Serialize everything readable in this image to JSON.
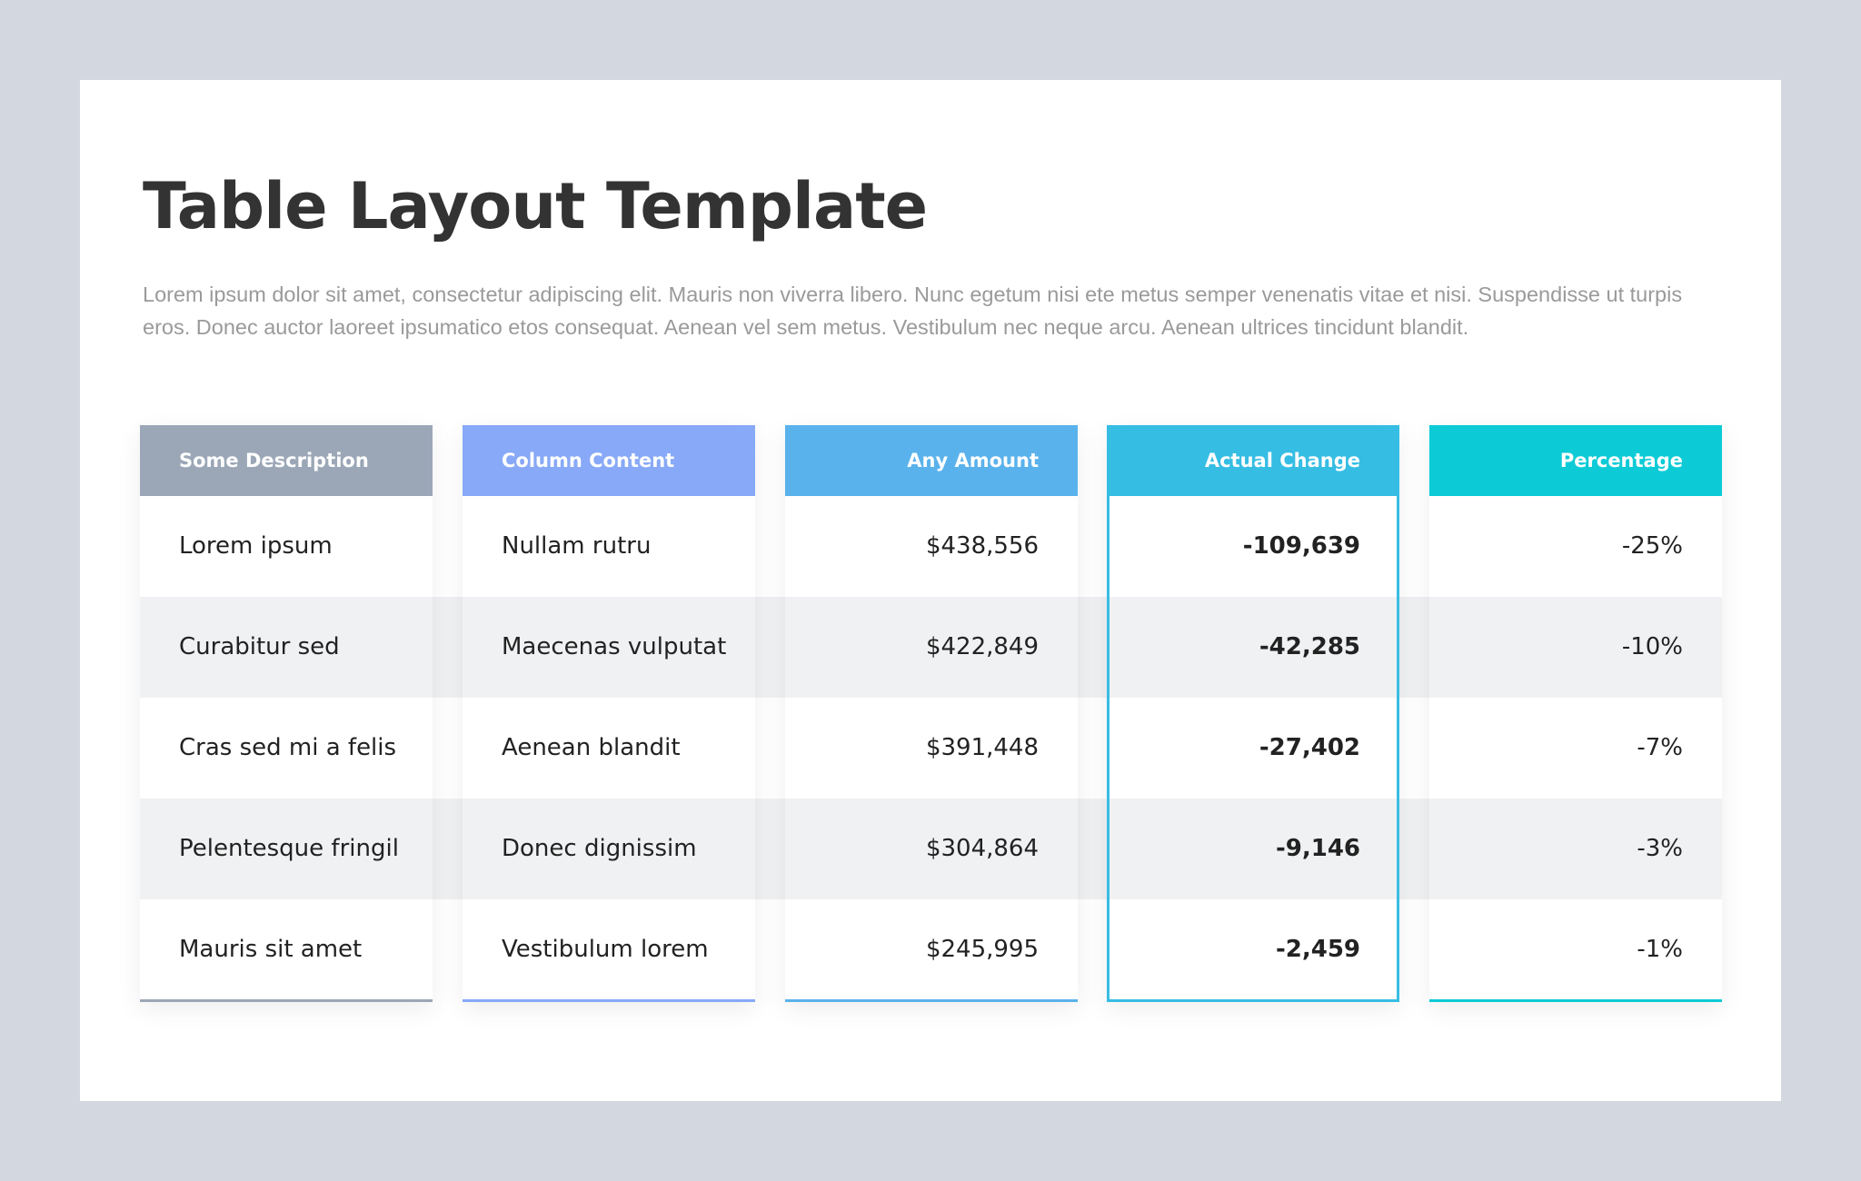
{
  "title": "Table Layout Template",
  "description": "Lorem ipsum dolor sit amet, consectetur adipiscing elit. Mauris non viverra libero. Nunc egetum nisi ete metus semper venenatis vitae et nisi. Suspendisse ut turpis eros. Donec auctor laoreet ipsumatico etos consequat. Aenean vel sem metus. Vestibulum nec neque arcu. Aenean ultrices tincidunt blandit.",
  "colors": {
    "description": "#9ba7b7",
    "content": "#88a9f7",
    "amount": "#5ab2ec",
    "change": "#36bde3",
    "percentage": "#0ccbd6"
  },
  "columns": {
    "description": {
      "header": "Some Description",
      "cells": [
        "Lorem ipsum",
        "Curabitur sed",
        "Cras sed mi a felis",
        "Pelentesque fringil",
        "Mauris sit amet"
      ]
    },
    "content": {
      "header": "Column Content",
      "cells": [
        "Nullam rutru",
        "Maecenas vulputat",
        "Aenean blandit",
        "Donec dignissim",
        "Vestibulum lorem"
      ]
    },
    "amount": {
      "header": "Any Amount",
      "cells": [
        "$438,556",
        "$422,849",
        "$391,448",
        "$304,864",
        "$245,995"
      ]
    },
    "change": {
      "header": "Actual Change",
      "cells": [
        "-109,639",
        "-42,285",
        "-27,402",
        "-9,146",
        "-2,459"
      ]
    },
    "percentage": {
      "header": "Percentage",
      "cells": [
        "-25%",
        "-10%",
        "-7%",
        "-3%",
        "-1%"
      ]
    }
  }
}
